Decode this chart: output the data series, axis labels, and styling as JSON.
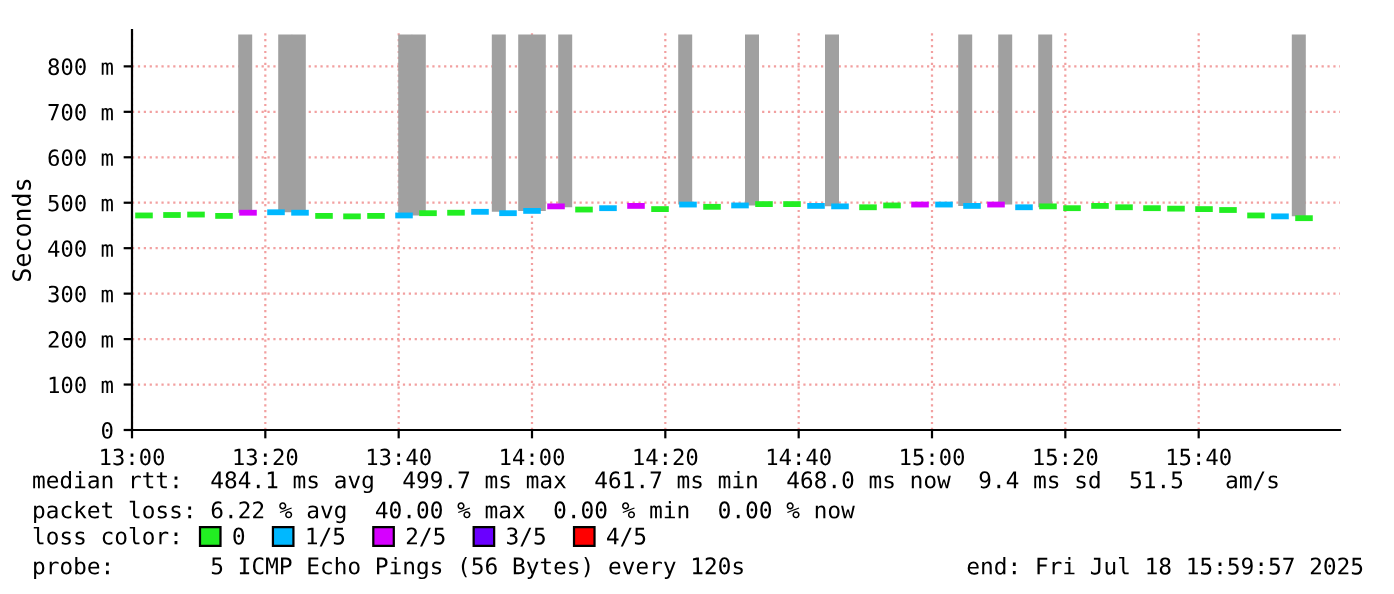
{
  "chart_data": {
    "type": "scatter",
    "marker": "square",
    "ylabel": "Seconds",
    "legend_title": "loss color:",
    "legend": "bottom",
    "grid": true,
    "xlim": [
      13,
      16.02
    ],
    "xticks": [
      {
        "value": 13,
        "label": "13:00"
      },
      {
        "value": 13.3333,
        "label": "13:20"
      },
      {
        "value": 13.6667,
        "label": "13:40"
      },
      {
        "value": 14,
        "label": "14:00"
      },
      {
        "value": 14.3333,
        "label": "14:20"
      },
      {
        "value": 14.6667,
        "label": "14:40"
      },
      {
        "value": 15,
        "label": "15:00"
      },
      {
        "value": 15.3333,
        "label": "15:20"
      },
      {
        "value": 15.6667,
        "label": "15:40"
      }
    ],
    "ylim": [
      0,
      880
    ],
    "yticks": [
      0,
      {
        "value": 100,
        "label": "100 m"
      },
      {
        "value": 200,
        "label": "200 m"
      },
      {
        "value": 300,
        "label": "300 m"
      },
      {
        "value": 400,
        "label": "400 m"
      },
      {
        "value": 500,
        "label": "500 m"
      },
      {
        "value": 600,
        "label": "600 m"
      },
      {
        "value": 700,
        "label": "700 m"
      },
      {
        "value": 800,
        "label": "800 m"
      }
    ],
    "x": [
      13.03,
      13.1,
      13.16,
      13.23,
      13.29,
      13.36,
      13.42,
      13.48,
      13.55,
      13.61,
      13.68,
      13.74,
      13.81,
      13.87,
      13.94,
      14.0,
      14.06,
      14.13,
      14.19,
      14.26,
      14.32,
      14.39,
      14.45,
      14.52,
      14.58,
      14.65,
      14.71,
      14.77,
      14.84,
      14.9,
      14.97,
      15.03,
      15.1,
      15.16,
      15.23,
      15.29,
      15.35,
      15.42,
      15.48,
      15.55,
      15.61,
      15.68,
      15.74,
      15.81,
      15.87,
      15.93
    ],
    "series": [
      {
        "type": "bar",
        "color": "#a0a0a0",
        "x": [
          13.283,
          13.383,
          13.417,
          13.683,
          13.717,
          13.917,
          13.983,
          14.017,
          14.083,
          14.383,
          14.55,
          14.75,
          15.083,
          15.183,
          15.283,
          15.917
        ],
        "base": [
          478,
          479,
          479,
          472,
          472,
          480,
          482,
          482,
          490,
          496,
          494,
          492,
          493,
          496,
          490,
          470
        ],
        "values": [
          392,
          391,
          391,
          398,
          398,
          390,
          388,
          388,
          380,
          374,
          376,
          378,
          377,
          374,
          380,
          400
        ]
      },
      {
        "name": "0",
        "color": "#22ee22",
        "values": [
          472,
          473,
          474,
          471,
          null,
          null,
          null,
          471,
          470,
          471,
          null,
          477,
          478,
          null,
          null,
          null,
          null,
          485,
          null,
          null,
          486,
          null,
          491,
          null,
          497,
          497,
          null,
          null,
          490,
          494,
          null,
          null,
          null,
          null,
          null,
          492,
          488,
          493,
          490,
          488,
          487,
          486,
          484,
          472,
          null,
          466
        ]
      },
      {
        "name": "1/5",
        "color": "#00b8ff",
        "values": [
          null,
          null,
          null,
          null,
          null,
          479,
          478,
          null,
          null,
          null,
          472,
          null,
          null,
          480,
          477,
          482,
          null,
          null,
          488,
          null,
          null,
          496,
          null,
          494,
          null,
          null,
          493,
          492,
          null,
          null,
          null,
          496,
          493,
          null,
          490,
          null,
          null,
          null,
          null,
          null,
          null,
          null,
          null,
          null,
          470,
          null
        ]
      },
      {
        "name": "2/5",
        "color": "#d600ff",
        "values": [
          null,
          null,
          null,
          null,
          478,
          null,
          null,
          null,
          null,
          null,
          null,
          null,
          null,
          null,
          null,
          null,
          492,
          null,
          null,
          493,
          null,
          null,
          null,
          null,
          null,
          null,
          null,
          null,
          null,
          null,
          496,
          null,
          null,
          496,
          null,
          null,
          null,
          null,
          null,
          null,
          null,
          null,
          null,
          null,
          null,
          null
        ]
      },
      {
        "name": "3/5",
        "color": "#6a00ff",
        "values": [
          null,
          null,
          null,
          null,
          null,
          null,
          null,
          null,
          null,
          null,
          null,
          null,
          null,
          null,
          null,
          null,
          null,
          null,
          null,
          null,
          null,
          null,
          null,
          null,
          null,
          null,
          null,
          null,
          null,
          null,
          null,
          null,
          null,
          null,
          null,
          null,
          null,
          null,
          null,
          null,
          null,
          null,
          null,
          null,
          null,
          null
        ]
      },
      {
        "name": "4/5",
        "color": "#ff0000",
        "values": [
          null,
          null,
          null,
          null,
          null,
          null,
          null,
          null,
          null,
          null,
          null,
          null,
          null,
          null,
          null,
          null,
          null,
          null,
          null,
          null,
          null,
          null,
          null,
          null,
          null,
          null,
          null,
          null,
          null,
          null,
          null,
          null,
          null,
          null,
          null,
          null,
          null,
          null,
          null,
          null,
          null,
          null,
          null,
          null,
          null,
          null
        ]
      }
    ],
    "annotations": [
      "median rtt:  484.1 ms avg  499.7 ms max  461.7 ms min  468.0 ms now  9.4 ms sd  51.5   am/s",
      "packet loss: 6.22 % avg  40.00 % max  0.00 % min  0.00 % now",
      "probe:       5 ICMP Echo Pings (56 Bytes) every 120s",
      "end: Fri Jul 18 15:59:57 2025"
    ]
  }
}
